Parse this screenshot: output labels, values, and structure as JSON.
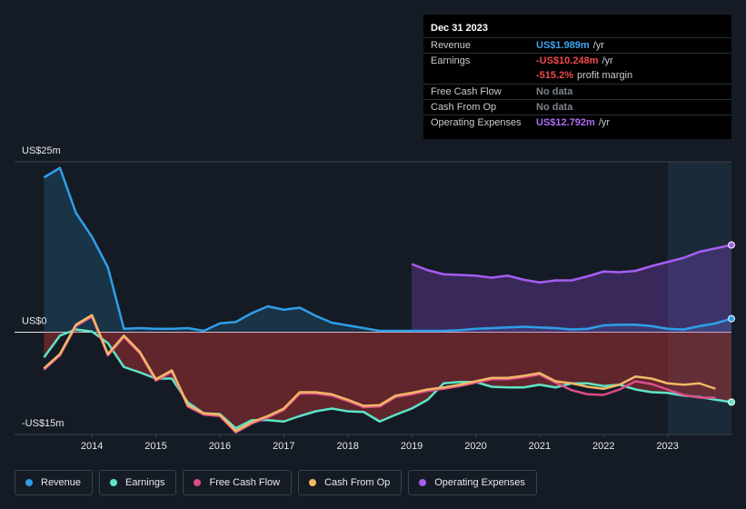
{
  "chart_data": {
    "type": "line",
    "x": [
      2013.25,
      2013.5,
      2013.75,
      2014,
      2014.25,
      2014.5,
      2014.75,
      2015,
      2015.25,
      2015.5,
      2015.75,
      2016,
      2016.25,
      2016.5,
      2016.75,
      2017,
      2017.25,
      2017.5,
      2017.75,
      2018,
      2018.25,
      2018.5,
      2018.75,
      2019,
      2019.25,
      2019.5,
      2019.75,
      2020,
      2020.25,
      2020.5,
      2020.75,
      2021,
      2021.25,
      2021.5,
      2021.75,
      2022,
      2022.25,
      2022.5,
      2022.75,
      2023,
      2023.25,
      2023.5,
      2023.75,
      2024
    ],
    "xlim": [
      2012.79,
      2024.0
    ],
    "xticks": [
      2014,
      2015,
      2016,
      2017,
      2018,
      2019,
      2020,
      2021,
      2022,
      2023
    ],
    "ylim": [
      -15,
      25
    ],
    "yticks": [
      {
        "value": 25,
        "label": "US$25m"
      },
      {
        "value": 0,
        "label": "US$0"
      },
      {
        "value": -15,
        "label": "-US$15m"
      }
    ],
    "grid": true,
    "series": [
      {
        "name": "Revenue",
        "color": "#2f9ee9",
        "fill": true,
        "end_dot": true,
        "values": [
          22.7,
          24.1,
          17.5,
          14.0,
          9.5,
          0.5,
          0.6,
          0.5,
          0.5,
          0.6,
          0.2,
          1.3,
          1.5,
          2.8,
          3.8,
          3.3,
          3.6,
          2.4,
          1.4,
          1.0,
          0.6,
          0.2,
          0.2,
          0.2,
          0.2,
          0.2,
          0.3,
          0.5,
          0.6,
          0.7,
          0.8,
          0.7,
          0.6,
          0.4,
          0.5,
          1.0,
          1.1,
          1.1,
          0.9,
          0.5,
          0.4,
          0.9,
          1.3,
          1.989
        ]
      },
      {
        "name": "Earnings",
        "color": "#5de4c7",
        "fill": true,
        "end_dot": true,
        "values": [
          -3.7,
          -0.5,
          0.4,
          0.1,
          -1.6,
          -5.1,
          -5.9,
          -6.8,
          -6.8,
          -10.3,
          -11.9,
          -12.0,
          -14.1,
          -12.9,
          -12.9,
          -13.1,
          -12.3,
          -11.6,
          -11.2,
          -11.6,
          -11.7,
          -13.1,
          -12.1,
          -11.2,
          -9.9,
          -7.5,
          -7.3,
          -7.3,
          -8.0,
          -8.1,
          -8.1,
          -7.7,
          -8.1,
          -7.5,
          -7.5,
          -7.9,
          -7.7,
          -8.4,
          -8.8,
          -8.9,
          -9.3,
          -9.5,
          -9.9,
          -10.248
        ]
      },
      {
        "name": "Free Cash Flow",
        "color": "#dd4d8a",
        "fill": false,
        "end_dot": false,
        "values": [
          -5.5,
          -3.4,
          0.9,
          2.3,
          -3.4,
          -0.7,
          -3.1,
          -7.1,
          -5.8,
          -10.9,
          -12.1,
          -12.3,
          -14.7,
          -13.4,
          -12.5,
          -11.4,
          -9.0,
          -9.0,
          -9.3,
          -10.1,
          -11.0,
          -10.9,
          -9.5,
          -9.1,
          -8.6,
          -8.3,
          -7.9,
          -7.4,
          -6.9,
          -6.9,
          -6.6,
          -6.2,
          -7.4,
          -8.5,
          -9.1,
          -9.2,
          -8.4,
          -7.2,
          -7.6,
          -8.4,
          -9.2,
          -9.6,
          -9.6,
          null
        ]
      },
      {
        "name": "Cash From Op",
        "color": "#f2b866",
        "fill": false,
        "end_dot": false,
        "values": [
          -5.3,
          -3.2,
          1.1,
          2.5,
          -3.2,
          -0.5,
          -2.9,
          -6.9,
          -5.6,
          -10.7,
          -11.9,
          -12.1,
          -14.5,
          -13.2,
          -12.3,
          -11.2,
          -8.8,
          -8.8,
          -9.1,
          -9.9,
          -10.8,
          -10.7,
          -9.3,
          -8.9,
          -8.4,
          -8.1,
          -7.7,
          -7.2,
          -6.7,
          -6.7,
          -6.4,
          -6.0,
          -7.2,
          -7.5,
          -8.0,
          -8.3,
          -7.7,
          -6.5,
          -6.8,
          -7.5,
          -7.7,
          -7.5,
          -8.3,
          null
        ]
      },
      {
        "name": "Operating Expenses",
        "color": "#a65df2",
        "fill": true,
        "end_dot": true,
        "values": [
          null,
          null,
          null,
          null,
          null,
          null,
          null,
          null,
          null,
          null,
          null,
          null,
          null,
          null,
          null,
          null,
          null,
          null,
          null,
          null,
          null,
          null,
          null,
          10.0,
          9.1,
          8.5,
          8.4,
          8.3,
          8.0,
          8.3,
          7.7,
          7.3,
          7.6,
          7.6,
          8.2,
          8.9,
          8.8,
          9.0,
          9.7,
          10.3,
          10.9,
          11.8,
          12.3,
          12.792
        ]
      }
    ],
    "tooltip": {
      "date": "Dec 31 2023",
      "rows": [
        {
          "label": "Revenue",
          "value": "US$1.989m",
          "unit": "/yr",
          "color": "#3ba3f0"
        },
        {
          "label": "Earnings",
          "value": "-US$10.248m",
          "unit": "/yr",
          "color": "#f04a4a",
          "margin": "-515.2%",
          "margin_text": "profit margin"
        },
        {
          "label": "Free Cash Flow",
          "value": "No data",
          "color": "#7d838b"
        },
        {
          "label": "Cash From Op",
          "value": "No data",
          "color": "#7d838b"
        },
        {
          "label": "Operating Expenses",
          "value": "US$12.792m",
          "unit": "/yr",
          "color": "#b06cf5"
        }
      ]
    }
  }
}
